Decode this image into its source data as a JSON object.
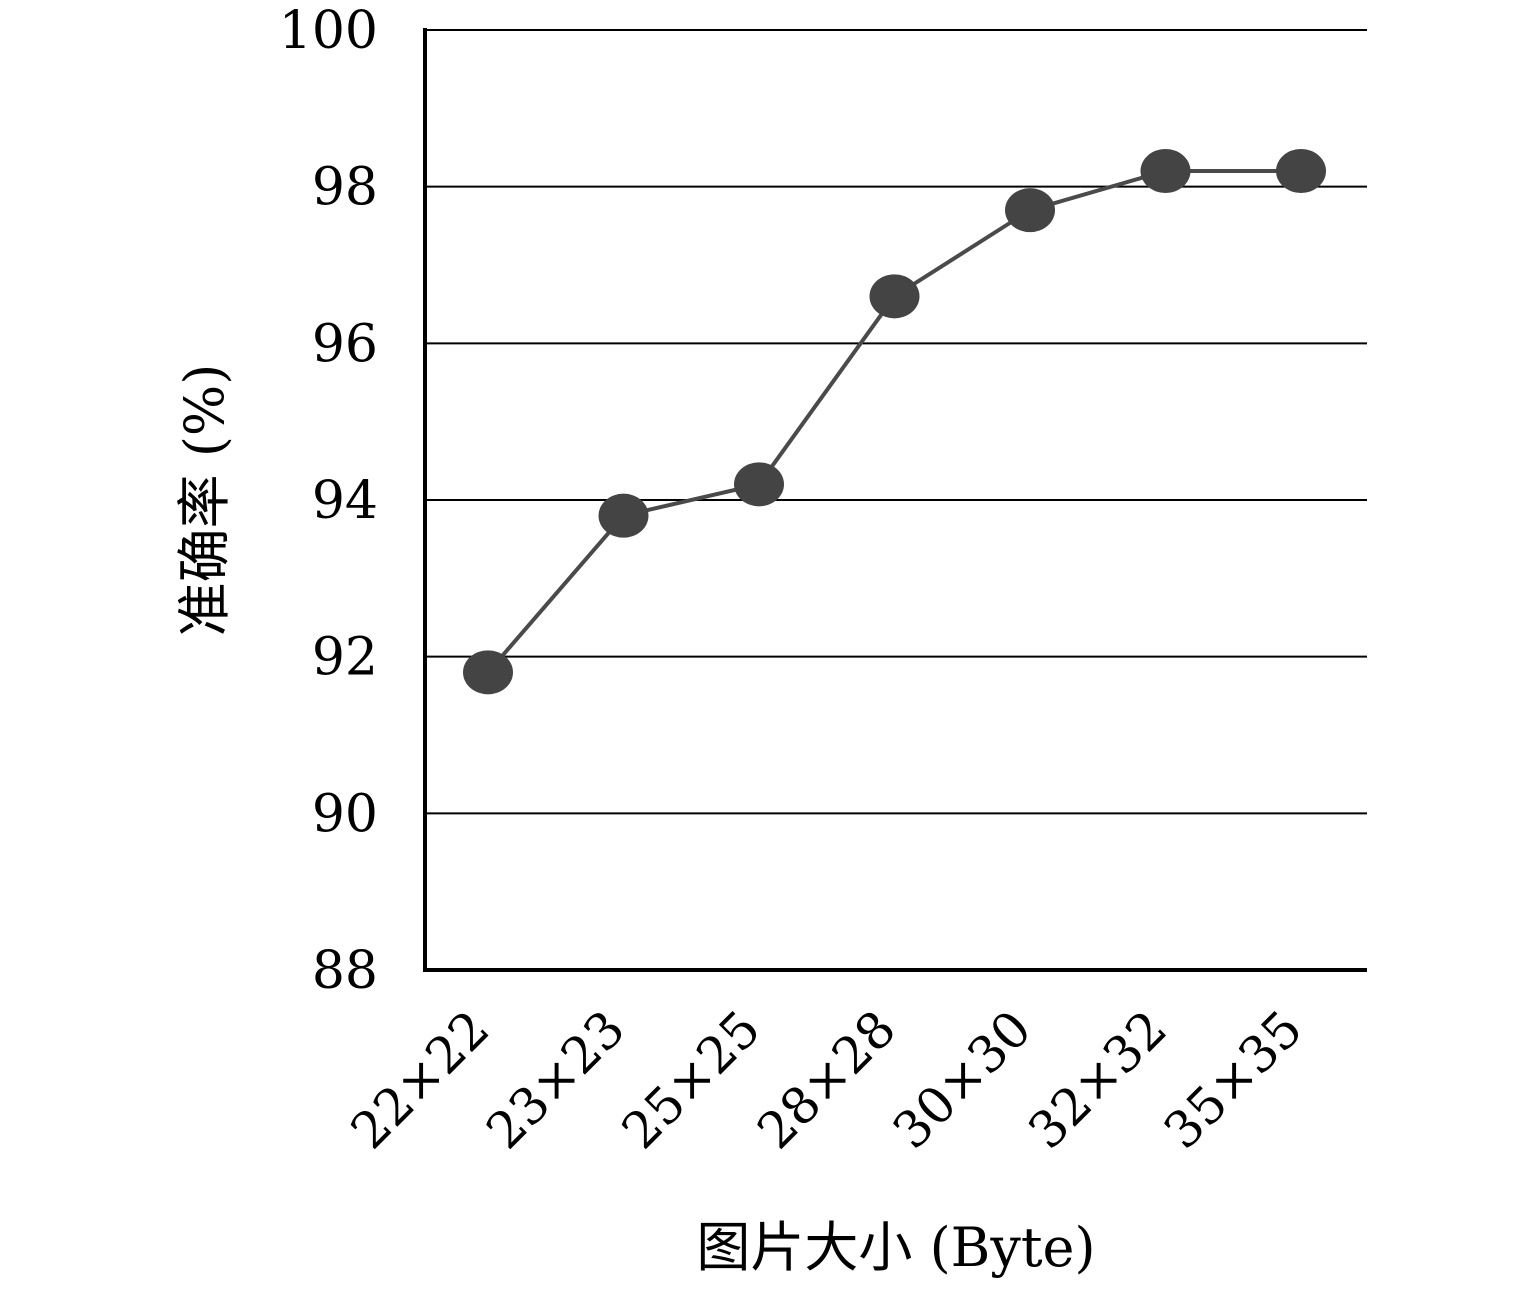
{
  "chart_data": {
    "type": "line",
    "categories": [
      "22×22",
      "23×23",
      "25×25",
      "28×28",
      "30×30",
      "32×32",
      "35×35"
    ],
    "series": [
      {
        "values": [
          91.8,
          93.8,
          94.2,
          96.6,
          97.7,
          98.2,
          98.2
        ]
      }
    ],
    "xlabel": "图片大小 (Byte)",
    "ylabel": "准确率 (%)",
    "ylim": [
      88,
      100
    ],
    "yticks": [
      88,
      90,
      92,
      94,
      96,
      98,
      100
    ],
    "grid": true,
    "legend": "none",
    "colors": {
      "line": "#4a4a4a",
      "marker": "#444444",
      "grid": "#000000",
      "axis": "#000000"
    }
  }
}
